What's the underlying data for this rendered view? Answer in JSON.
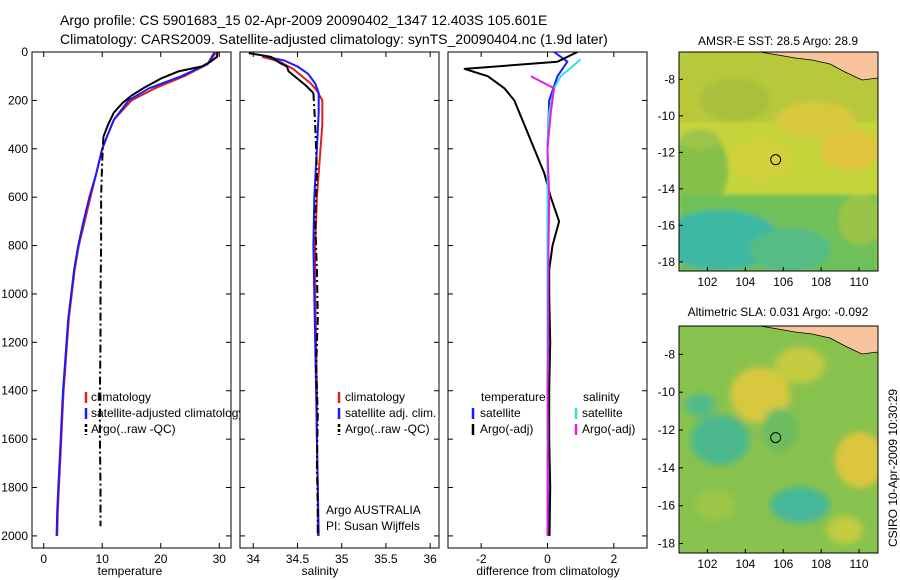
{
  "header": {
    "line1": "Argo profile: CS 5901683_15 02-Apr-2009 20090402_1347 12.403S 105.601E",
    "line2": "Climatology: CARS2009. Satellite-adjusted climatology: synTS_20090404.nc (1.9d later)"
  },
  "side_text": "CSIRO 10-Apr-2009 10:30:29",
  "credits": [
    "Argo AUSTRALIA",
    "PI: Susan Wijffels"
  ],
  "colors": {
    "red": "#e02020",
    "blue": "#1a1aff",
    "black": "#000000",
    "cyan": "#33e0e0",
    "magenta": "#e020e0"
  },
  "chart_data": [
    {
      "type": "line",
      "xlabel": "temperature",
      "xlim": [
        -2,
        32
      ],
      "ylim": [
        2050,
        0
      ],
      "xticks": [
        0,
        10,
        20,
        30
      ],
      "yticks": [
        0,
        200,
        400,
        600,
        800,
        1000,
        1200,
        1400,
        1600,
        1800,
        2000
      ],
      "legend": [
        "climatology",
        "satellite-adjusted climatology",
        "Argo(..raw -QC)"
      ],
      "series": [
        {
          "name": "climatology",
          "color": "red",
          "dash": "solid",
          "points": [
            [
              29.5,
              0
            ],
            [
              28,
              50
            ],
            [
              24,
              100
            ],
            [
              19,
              150
            ],
            [
              15,
              200
            ],
            [
              12,
              280
            ],
            [
              10.8,
              350
            ],
            [
              10,
              400
            ],
            [
              9,
              500
            ],
            [
              8,
              600
            ],
            [
              7,
              700
            ],
            [
              6,
              800
            ],
            [
              5.3,
              900
            ],
            [
              4.8,
              1000
            ],
            [
              4.3,
              1100
            ],
            [
              4,
              1200
            ],
            [
              3.7,
              1300
            ],
            [
              3.4,
              1400
            ],
            [
              3.2,
              1500
            ],
            [
              3,
              1600
            ],
            [
              2.8,
              1700
            ],
            [
              2.6,
              1800
            ],
            [
              2.4,
              1900
            ],
            [
              2.3,
              2000
            ]
          ]
        },
        {
          "name": "satellite-adjusted climatology",
          "color": "blue",
          "dash": "solid",
          "points": [
            [
              29.2,
              0
            ],
            [
              28,
              50
            ],
            [
              23.5,
              100
            ],
            [
              18,
              150
            ],
            [
              14.5,
              200
            ],
            [
              12,
              280
            ],
            [
              10.8,
              350
            ],
            [
              10,
              400
            ],
            [
              9,
              500
            ],
            [
              7.8,
              600
            ],
            [
              6.8,
              700
            ],
            [
              5.9,
              800
            ],
            [
              5.2,
              900
            ],
            [
              4.7,
              1000
            ],
            [
              4.2,
              1100
            ],
            [
              3.9,
              1200
            ],
            [
              3.6,
              1300
            ],
            [
              3.3,
              1400
            ],
            [
              3.1,
              1500
            ],
            [
              2.9,
              1600
            ],
            [
              2.7,
              1700
            ],
            [
              2.5,
              1800
            ],
            [
              2.3,
              1900
            ],
            [
              2.2,
              2000
            ]
          ]
        },
        {
          "name": "Argo(..raw -QC)",
          "color": "black",
          "dash": "solid",
          "points": [
            [
              29.7,
              0
            ],
            [
              29.6,
              20
            ],
            [
              28.5,
              40
            ],
            [
              27,
              60
            ],
            [
              23,
              80
            ],
            [
              20,
              110
            ],
            [
              17,
              150
            ],
            [
              15,
              180
            ],
            [
              13.5,
              210
            ],
            [
              12,
              250
            ],
            [
              11,
              300
            ],
            [
              10.2,
              350
            ]
          ]
        },
        {
          "name": "Argo(..raw -QC)",
          "color": "black",
          "dash": "dashdot",
          "points": [
            [
              10.2,
              350
            ],
            [
              10,
              450
            ],
            [
              9.8,
              600
            ],
            [
              9.8,
              800
            ],
            [
              9.7,
              1000
            ],
            [
              9.7,
              1200
            ],
            [
              9.6,
              1400
            ],
            [
              9.6,
              1600
            ],
            [
              9.7,
              1800
            ],
            [
              9.7,
              1960
            ]
          ]
        }
      ]
    },
    {
      "type": "line",
      "xlabel": "salinity",
      "xlim": [
        33.85,
        36.1
      ],
      "ylim": [
        2050,
        0
      ],
      "xticks": [
        34,
        34.5,
        35,
        35.5,
        36
      ],
      "legend": [
        "climatology",
        "satellite adj. clim.",
        "Argo(..raw -QC)"
      ],
      "series": [
        {
          "name": "climatology",
          "color": "red",
          "dash": "solid",
          "points": [
            [
              34.1,
              20
            ],
            [
              34.3,
              40
            ],
            [
              34.45,
              70
            ],
            [
              34.55,
              100
            ],
            [
              34.65,
              130
            ],
            [
              34.72,
              160
            ],
            [
              34.78,
              200
            ],
            [
              34.78,
              300
            ],
            [
              34.76,
              400
            ],
            [
              34.72,
              600
            ],
            [
              34.7,
              800
            ],
            [
              34.7,
              1000
            ],
            [
              34.71,
              1200
            ],
            [
              34.72,
              1400
            ],
            [
              34.72,
              1600
            ],
            [
              34.73,
              1800
            ],
            [
              34.73,
              2000
            ]
          ]
        },
        {
          "name": "satellite adj. clim.",
          "color": "blue",
          "dash": "solid",
          "points": [
            [
              34.15,
              20
            ],
            [
              34.35,
              35
            ],
            [
              34.5,
              60
            ],
            [
              34.62,
              90
            ],
            [
              34.7,
              130
            ],
            [
              34.74,
              170
            ],
            [
              34.74,
              250
            ],
            [
              34.72,
              400
            ],
            [
              34.69,
              600
            ],
            [
              34.68,
              800
            ],
            [
              34.69,
              1000
            ],
            [
              34.7,
              1200
            ],
            [
              34.71,
              1400
            ],
            [
              34.72,
              1600
            ],
            [
              34.73,
              1800
            ],
            [
              34.74,
              2000
            ]
          ]
        },
        {
          "name": "Argo(..raw -QC)",
          "color": "black",
          "dash": "solid",
          "points": [
            [
              33.95,
              5
            ],
            [
              34.2,
              20
            ],
            [
              34.3,
              45
            ],
            [
              34.38,
              60
            ],
            [
              34.4,
              80
            ],
            [
              34.5,
              110
            ],
            [
              34.6,
              140
            ],
            [
              34.68,
              170
            ]
          ]
        },
        {
          "name": "Argo(..raw -QC)",
          "color": "black",
          "dash": "dashdot",
          "points": [
            [
              34.68,
              170
            ],
            [
              34.7,
              300
            ],
            [
              34.72,
              500
            ],
            [
              34.7,
              700
            ],
            [
              34.72,
              900
            ],
            [
              34.73,
              1100
            ],
            [
              34.71,
              1300
            ],
            [
              34.73,
              1500
            ],
            [
              34.72,
              1700
            ],
            [
              34.73,
              1900
            ],
            [
              34.73,
              2000
            ]
          ]
        }
      ]
    },
    {
      "type": "line",
      "xlabel": "difference from climatology",
      "xlim": [
        -3,
        3
      ],
      "ylim": [
        2050,
        0
      ],
      "xticks": [
        -2,
        0,
        2
      ],
      "legend": [
        "temperature",
        "satellite",
        "Argo(-adj)",
        "salinity",
        "satellite",
        "Argo(-adj)"
      ],
      "series": [
        {
          "name": "temperature satellite",
          "color": "blue",
          "dash": "solid",
          "points": [
            [
              0.2,
              0
            ],
            [
              0.6,
              40
            ],
            [
              0.3,
              100
            ],
            [
              0.05,
              200
            ],
            [
              0,
              400
            ],
            [
              0,
              700
            ],
            [
              0,
              1000
            ],
            [
              0,
              1300
            ],
            [
              0,
              1600
            ],
            [
              0.02,
              2000
            ]
          ]
        },
        {
          "name": "temperature Argo(-adj)",
          "color": "black",
          "dash": "solid",
          "points": [
            [
              0.9,
              0
            ],
            [
              0.3,
              40
            ],
            [
              -2.5,
              70
            ],
            [
              -1.8,
              100
            ],
            [
              -1.3,
              150
            ],
            [
              -1,
              200
            ],
            [
              -0.7,
              300
            ],
            [
              -0.4,
              400
            ],
            [
              -0.1,
              500
            ],
            [
              0.1,
              600
            ],
            [
              0.35,
              700
            ],
            [
              0.15,
              800
            ],
            [
              0.05,
              900
            ],
            [
              0.05,
              1000
            ],
            [
              0.08,
              1200
            ],
            [
              0.05,
              1400
            ],
            [
              0.05,
              1600
            ],
            [
              0.08,
              1800
            ],
            [
              0.06,
              2000
            ]
          ]
        },
        {
          "name": "salinity satellite",
          "color": "cyan",
          "dash": "solid",
          "points": [
            [
              1,
              30
            ],
            [
              0.75,
              60
            ],
            [
              0.4,
              100
            ],
            [
              0.2,
              150
            ],
            [
              0.05,
              250
            ],
            [
              0,
              400
            ],
            [
              0,
              700
            ],
            [
              0,
              1000
            ],
            [
              0,
              1300
            ],
            [
              0,
              1600
            ],
            [
              0,
              2000
            ]
          ]
        },
        {
          "name": "salinity Argo(-adj)",
          "color": "magenta",
          "dash": "solid",
          "points": [
            [
              -0.5,
              100
            ],
            [
              0.2,
              150
            ],
            [
              0.1,
              250
            ],
            [
              0,
              400
            ],
            [
              0.05,
              600
            ],
            [
              0.03,
              800
            ],
            [
              0.02,
              1000
            ],
            [
              0.02,
              1200
            ],
            [
              0,
              1400
            ],
            [
              0.01,
              1600
            ],
            [
              0,
              1800
            ],
            [
              0,
              2000
            ]
          ]
        }
      ]
    },
    {
      "type": "heatmap",
      "title": "AMSR-E SST: 28.5  Argo: 28.9",
      "xticks": [
        102,
        104,
        106,
        108,
        110
      ],
      "yticks": [
        -8,
        -10,
        -12,
        -14,
        -16,
        -18
      ],
      "xlim": [
        100.5,
        111
      ],
      "ylim": [
        -18.5,
        -6.5
      ],
      "marker": [
        105.6,
        -12.4
      ]
    },
    {
      "type": "heatmap",
      "title": "Altimetric SLA: 0.031  Argo: -0.092",
      "xticks": [
        102,
        104,
        106,
        108,
        110
      ],
      "yticks": [
        -8,
        -10,
        -12,
        -14,
        -16,
        -18
      ],
      "xlim": [
        100.5,
        111
      ],
      "ylim": [
        -18.5,
        -6.5
      ],
      "marker": [
        105.6,
        -12.4
      ]
    }
  ]
}
